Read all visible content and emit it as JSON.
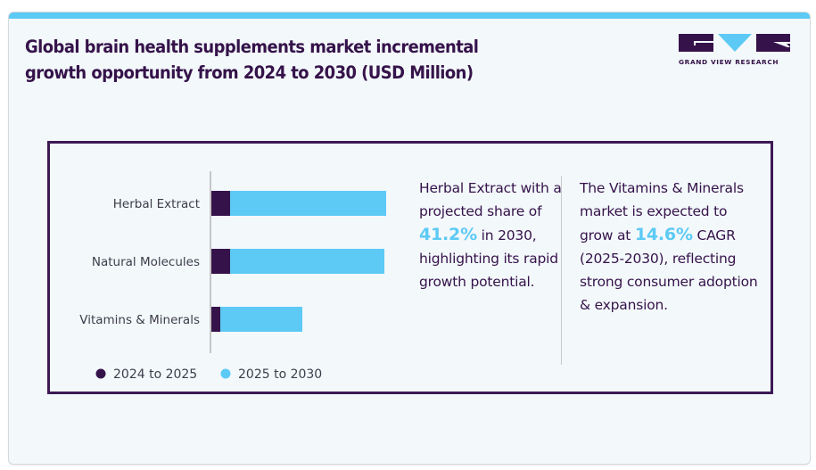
{
  "header": {
    "title_line1": "Global brain health supplements market incremental",
    "title_line2": "growth opportunity from 2024 to 2030 (USD Million)"
  },
  "logo": {
    "name": "GRAND VIEW RESEARCH",
    "colors": {
      "dark": "#35134a",
      "accent": "#5ccaf5"
    }
  },
  "colors": {
    "stripe": "#5ccaf5",
    "series_dark": "#35134a",
    "series_light": "#5ccaf5",
    "text": "#35134a",
    "label_text": "#3d3d4a"
  },
  "chart_data": {
    "type": "bar",
    "orientation": "horizontal",
    "stacked": true,
    "title": "Global brain health supplements market incremental growth opportunity from 2024 to 2030 (USD Million)",
    "xlabel": "",
    "ylabel": "",
    "units": "relative (no value axis shown)",
    "categories": [
      "Herbal Extract",
      "Natural Molecules",
      "Vitamins & Minerals"
    ],
    "series": [
      {
        "name": "2024 to 2025",
        "color": "#35134a",
        "values": [
          22,
          22,
          11
        ]
      },
      {
        "name": "2025 to 2030",
        "color": "#5ccaf5",
        "values": [
          175,
          173,
          92
        ]
      }
    ],
    "xlim": [
      0,
      200
    ],
    "grid": false,
    "legend_position": "bottom"
  },
  "insights": [
    {
      "before": "Herbal Extract with a projected share of",
      "highlight": "41.2%",
      "after": "in 2030, highlighting its rapid growth potential."
    },
    {
      "before": "The Vitamins & Minerals market is expected to grow at",
      "highlight": "14.6%",
      "after": "CAGR (2025-2030), reflecting strong consumer adoption & expansion."
    }
  ]
}
